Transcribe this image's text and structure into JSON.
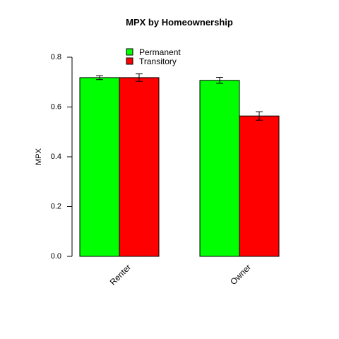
{
  "chart_data": {
    "type": "bar",
    "title": "MPX  by  Homeownership",
    "xlabel": "",
    "ylabel": "MPX",
    "ylim": [
      0,
      0.8
    ],
    "yticks": [
      "0.0",
      "0.2",
      "0.4",
      "0.6",
      "0.8"
    ],
    "ytick_values": [
      0,
      0.2,
      0.4,
      0.6,
      0.8
    ],
    "categories": [
      "Renter",
      "Owner"
    ],
    "series": [
      {
        "name": "Permanent",
        "color": "#00ff00",
        "values": [
          0.718,
          0.707
        ],
        "err_low": [
          0.71,
          0.695
        ],
        "err_high": [
          0.726,
          0.719
        ]
      },
      {
        "name": "Transitory",
        "color": "#ff0000",
        "values": [
          0.718,
          0.564
        ],
        "err_low": [
          0.703,
          0.547
        ],
        "err_high": [
          0.733,
          0.581
        ]
      }
    ],
    "legend_position": "top-center",
    "grid": false
  }
}
